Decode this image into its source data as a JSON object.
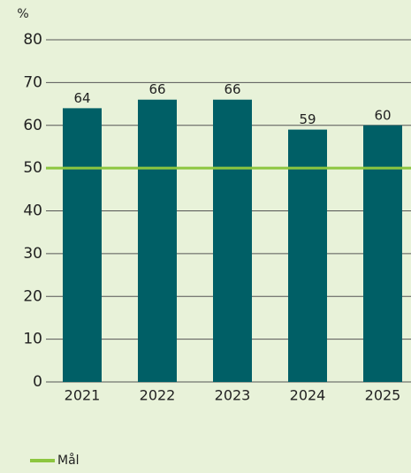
{
  "chart_data": {
    "type": "bar",
    "unit_label": "%",
    "categories": [
      "2021",
      "2022",
      "2023",
      "2024",
      "2025"
    ],
    "values": [
      64,
      66,
      66,
      59,
      60
    ],
    "color": "#005f66",
    "ylim": [
      0,
      80
    ],
    "yticks": [
      0,
      10,
      20,
      30,
      40,
      50,
      60,
      70,
      80
    ],
    "grid": true,
    "target": {
      "name": "Mål",
      "value": 50,
      "color": "#8cc63f"
    },
    "legend": "bottom-left"
  }
}
